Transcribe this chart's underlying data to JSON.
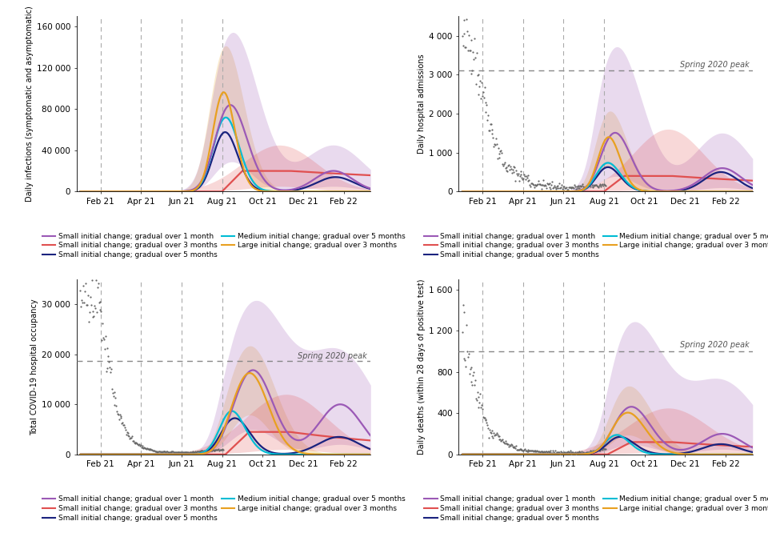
{
  "colors": {
    "purple": "#9B59B6",
    "red": "#E05050",
    "dark_blue": "#1A237E",
    "cyan": "#00BCD4",
    "orange": "#E8A020",
    "grey_dot": "#666666"
  },
  "legend_labels": [
    "Small initial change; gradual over 1 month",
    "Small initial change; gradual over 3 months",
    "Small initial change; gradual over 5 months",
    "Medium initial change; gradual over 5 months",
    "Large initial change; gradual over 3 months"
  ],
  "x_tick_labels": [
    "Feb 21",
    "Apr 21",
    "Jun 21",
    "Aug 21",
    "Oct 21",
    "Dec 21",
    "Feb 22"
  ],
  "ylabels": [
    "Daily infections (symptomatic and asymptomatic)",
    "Daily hospital admissions",
    "Total COVID-19 hospital occupancy",
    "Daily deaths (within 28 days of positive test)"
  ]
}
